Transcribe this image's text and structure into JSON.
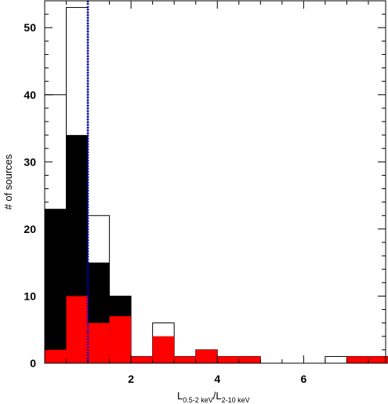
{
  "chart_data": {
    "type": "bar",
    "title": "",
    "xlabel_main": "L",
    "xlabel_sub1": "0.5-2 keV",
    "xlabel_slash": "/L",
    "xlabel_sub2": "2-10 keV",
    "ylabel": "# of sources",
    "xlim": [
      0.0,
      7.9
    ],
    "ylim": [
      0,
      54
    ],
    "x_ticks": [
      2,
      4,
      6
    ],
    "y_ticks": [
      0,
      10,
      20,
      30,
      40,
      50
    ],
    "bin_width": 0.5,
    "bin_starts": [
      0.0,
      0.5,
      1.0,
      1.5,
      2.0,
      2.5,
      3.0,
      3.5,
      4.0,
      4.5,
      5.0,
      5.5,
      6.0,
      6.5,
      7.0,
      7.5
    ],
    "series": [
      {
        "values": [
          40,
          53,
          22,
          10,
          1,
          6,
          1,
          2,
          1,
          1,
          0,
          0,
          0,
          1,
          1,
          1
        ],
        "color": "#ffffff",
        "outline": "#000000"
      },
      {
        "values": [
          23,
          34,
          15,
          10,
          1,
          4,
          1,
          2,
          1,
          1,
          0,
          0,
          0,
          0,
          1,
          1
        ],
        "color": "#000000"
      },
      {
        "values": [
          2,
          10,
          6,
          7,
          1,
          4,
          1,
          2,
          1,
          1,
          0,
          0,
          0,
          0,
          1,
          1
        ],
        "color": "#ff0000"
      }
    ],
    "reference_line": {
      "x": 1.0,
      "color": "#0000dd",
      "style": "dotted"
    },
    "grid": false,
    "legend": "none"
  }
}
